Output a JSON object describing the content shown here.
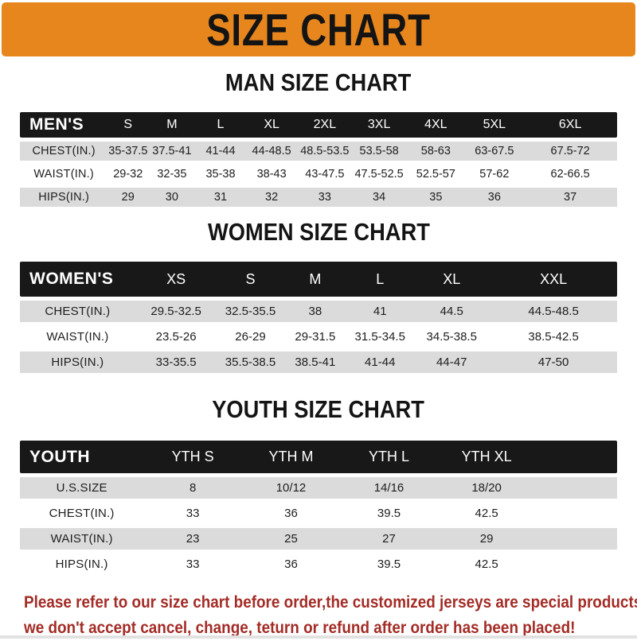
{
  "banner": {
    "title": "SIZE CHART",
    "bg_color": "#E8861E",
    "text_color": "#141414"
  },
  "colors": {
    "header_bar": "#181818",
    "row_gray": "#DBDBDB",
    "row_white": "#FFFFFF",
    "note_red": "#A32C26"
  },
  "sections": [
    {
      "heading": "MAN SIZE CHART",
      "table": {
        "label": "MEN'S",
        "columns": [
          "S",
          "M",
          "L",
          "XL",
          "2XL",
          "3XL",
          "4XL",
          "5XL",
          "6XL"
        ],
        "rows": [
          {
            "label": "CHEST(IN.)",
            "values": [
              "35-37.5",
              "37.5-41",
              "41-44",
              "44-48.5",
              "48.5-53.5",
              "53.5-58",
              "58-63",
              "63-67.5",
              "67.5-72"
            ]
          },
          {
            "label": "WAIST(IN.)",
            "values": [
              "29-32",
              "32-35",
              "35-38",
              "38-43",
              "43-47.5",
              "47.5-52.5",
              "52.5-57",
              "57-62",
              "62-66.5"
            ]
          },
          {
            "label": "HIPS(IN.)",
            "values": [
              "29",
              "30",
              "31",
              "32",
              "33",
              "34",
              "35",
              "36",
              "37"
            ]
          }
        ]
      }
    },
    {
      "heading": "WOMEN SIZE CHART",
      "table": {
        "label": "WOMEN'S",
        "columns": [
          "XS",
          "S",
          "M",
          "L",
          "XL",
          "XXL"
        ],
        "rows": [
          {
            "label": "CHEST(IN.)",
            "values": [
              "29.5-32.5",
              "32.5-35.5",
              "38",
              "41",
              "44.5",
              "44.5-48.5"
            ]
          },
          {
            "label": "WAIST(IN.)",
            "values": [
              "23.5-26",
              "26-29",
              "29-31.5",
              "31.5-34.5",
              "34.5-38.5",
              "38.5-42.5"
            ]
          },
          {
            "label": "HIPS(IN.)",
            "values": [
              "33-35.5",
              "35.5-38.5",
              "38.5-41",
              "41-44",
              "44-47",
              "47-50"
            ]
          }
        ]
      }
    },
    {
      "heading": "YOUTH SIZE CHART",
      "table": {
        "label": "YOUTH",
        "columns": [
          "YTH S",
          "YTH M",
          "YTH L",
          "YTH XL"
        ],
        "rows": [
          {
            "label": "U.S.SIZE",
            "values": [
              "8",
              "10/12",
              "14/16",
              "18/20"
            ]
          },
          {
            "label": "CHEST(IN.)",
            "values": [
              "33",
              "36",
              "39.5",
              "42.5"
            ]
          },
          {
            "label": "WAIST(IN.)",
            "values": [
              "23",
              "25",
              "27",
              "29"
            ]
          },
          {
            "label": "HIPS(IN.)",
            "values": [
              "33",
              "36",
              "39.5",
              "42.5"
            ]
          }
        ]
      }
    }
  ],
  "note": {
    "lines": [
      "Please refer to our size chart before order,the customized jerseys are special products,",
      "we don't accept cancel, change, teturn or refund after order has been placed!"
    ]
  }
}
